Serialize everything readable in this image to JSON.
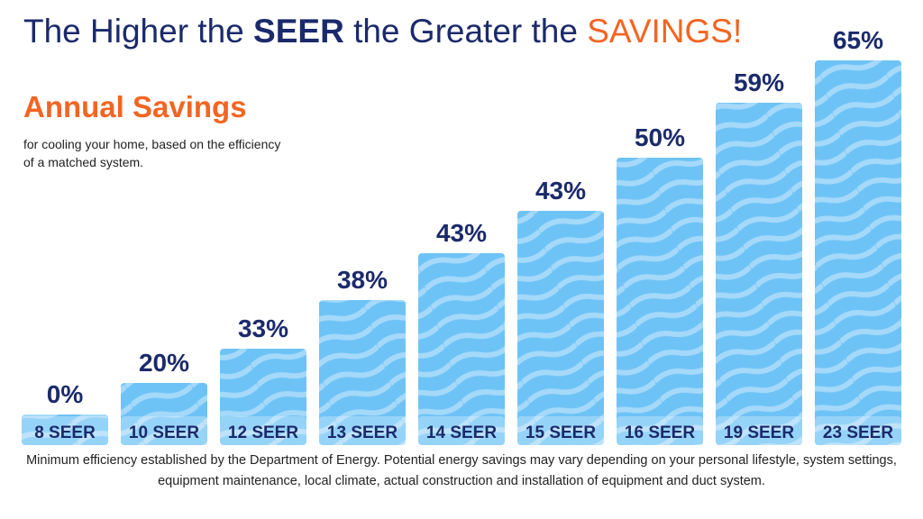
{
  "header": {
    "title_part1": "The Higher the ",
    "title_bold": "SEER",
    "title_part2": " the Greater the ",
    "title_accent": "SAVINGS!"
  },
  "subtitle": "Annual Savings",
  "description": "for cooling your home, based on the efficiency of a matched system.",
  "footer": "Minimum efficiency established by the Department of Energy. Potential energy savings may vary depending on your personal lifestyle, system settings, equipment maintenance, local climate, actual construction and installation of equipment and duct system.",
  "colors": {
    "navy": "#1b2a6b",
    "orange": "#f26522",
    "bar": "#6ec3f6",
    "wave": "#a5d9fa"
  },
  "chart_data": {
    "type": "bar",
    "title": "The Higher the SEER the Greater the SAVINGS!",
    "xlabel": "",
    "ylabel": "",
    "categories": [
      "8 SEER",
      "10 SEER",
      "12 SEER",
      "13 SEER",
      "14 SEER",
      "15 SEER",
      "16 SEER",
      "19 SEER",
      "23 SEER"
    ],
    "values": [
      0,
      20,
      33,
      38,
      43,
      43,
      50,
      59,
      65
    ],
    "labels": [
      "0%",
      "20%",
      "33%",
      "38%",
      "43%",
      "43%",
      "50%",
      "59%",
      "65%"
    ],
    "grid": false,
    "legend": "none"
  }
}
